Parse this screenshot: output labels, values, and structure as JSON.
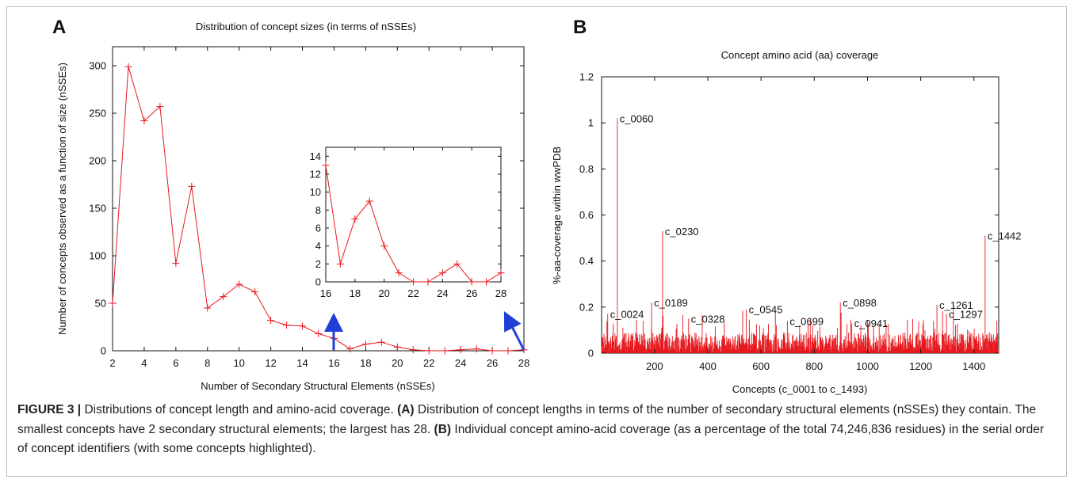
{
  "panelA": {
    "letter": "A",
    "chart_data": {
      "type": "line",
      "title": "Distribution of concept sizes (in terms of nSSEs)",
      "xlabel": "Number of Secondary Structural Elements (nSSEs)",
      "ylabel": "Number of concepts observed as a function of size (nSSEs)",
      "xlim": [
        2,
        28
      ],
      "ylim": [
        0,
        320
      ],
      "xticks": [
        "2",
        "4",
        "6",
        "8",
        "10",
        "12",
        "14",
        "16",
        "18",
        "20",
        "22",
        "24",
        "26",
        "28"
      ],
      "yticks": [
        "0",
        "50",
        "100",
        "150",
        "200",
        "250",
        "300"
      ],
      "series": [
        {
          "x": [
            2,
            3,
            4,
            5,
            6,
            7,
            8,
            9,
            10,
            11,
            12,
            13,
            14,
            15,
            16,
            17,
            18,
            19,
            20,
            21,
            22,
            23,
            24,
            25,
            26,
            27,
            28
          ],
          "y": [
            50,
            299,
            242,
            257,
            92,
            173,
            45,
            57,
            70,
            62,
            32,
            27,
            26,
            18,
            13,
            2,
            7,
            9,
            4,
            1,
            0,
            0,
            1,
            2,
            0,
            0,
            1
          ]
        }
      ],
      "color": "#e8191e",
      "arrow_color": "#1f3fd6",
      "inset": {
        "xlim": [
          16,
          28
        ],
        "ylim": [
          0,
          15
        ],
        "xticks": [
          "16",
          "18",
          "20",
          "22",
          "24",
          "26",
          "28"
        ],
        "yticks": [
          "0",
          "2",
          "4",
          "6",
          "8",
          "10",
          "12",
          "14"
        ],
        "x": [
          16,
          17,
          18,
          19,
          20,
          21,
          22,
          23,
          24,
          25,
          26,
          27,
          28
        ],
        "y": [
          13,
          2,
          7,
          9,
          4,
          1,
          0,
          0,
          1,
          2,
          0,
          0,
          1
        ]
      }
    }
  },
  "panelB": {
    "letter": "B",
    "chart_data": {
      "type": "bar",
      "title": "Concept amino acid (aa) coverage",
      "xlabel": "Concepts (c_0001  to c_1493)",
      "ylabel": "%-aa-coverage within wwPDB",
      "xlim": [
        1,
        1493
      ],
      "ylim": [
        0,
        1.2
      ],
      "xticks": [
        "200",
        "400",
        "600",
        "800",
        "1000",
        "1200",
        "1400"
      ],
      "yticks": [
        "0",
        "0.2",
        "0.4",
        "0.6",
        "0.8",
        "1",
        "1.2"
      ],
      "color": "#e8191e",
      "highlights": [
        {
          "x": 24,
          "y": 0.17,
          "label": "c_0024"
        },
        {
          "x": 60,
          "y": 1.02,
          "label": "c_0060"
        },
        {
          "x": 189,
          "y": 0.22,
          "label": "c_0189"
        },
        {
          "x": 230,
          "y": 0.53,
          "label": "c_0230"
        },
        {
          "x": 328,
          "y": 0.15,
          "label": "c_0328"
        },
        {
          "x": 545,
          "y": 0.19,
          "label": "c_0545"
        },
        {
          "x": 699,
          "y": 0.14,
          "label": "c_0699"
        },
        {
          "x": 898,
          "y": 0.22,
          "label": "c_0898"
        },
        {
          "x": 941,
          "y": 0.13,
          "label": "c_0941"
        },
        {
          "x": 1261,
          "y": 0.21,
          "label": "c_1261"
        },
        {
          "x": 1297,
          "y": 0.17,
          "label": "c_1297"
        },
        {
          "x": 1442,
          "y": 0.51,
          "label": "c_1442"
        }
      ]
    }
  },
  "caption": {
    "figure_label": "FIGURE 3 |",
    "lead": " Distributions of concept length and amino-acid coverage. ",
    "a_label": "(A)",
    "a_text": " Distribution of concept lengths in terms of the number of secondary structural elements (nSSEs) they contain. The smallest concepts have 2 secondary structural elements; the largest has 28. ",
    "b_label": "(B)",
    "b_text": " Individual concept amino-acid coverage (as a percentage of the total 74,246,836 residues) in the serial order of concept identifiers (with some concepts highlighted)."
  }
}
